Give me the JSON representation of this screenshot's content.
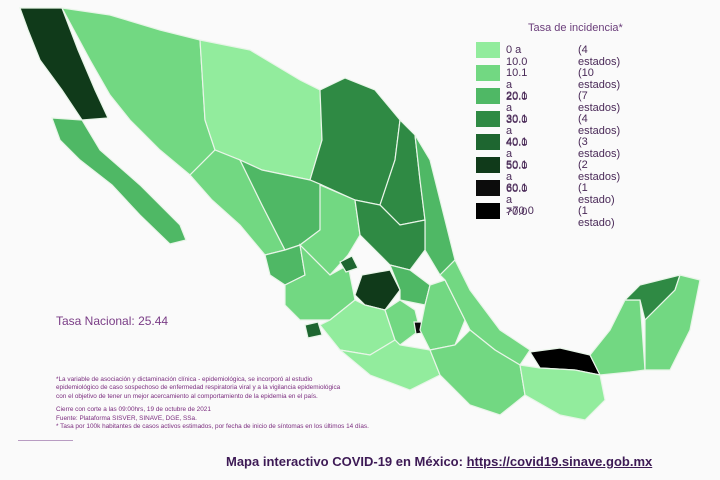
{
  "legend": {
    "title": "Tasa de incidencia*",
    "rows": [
      {
        "range": "0  a  10.0",
        "count": "(4 estados)",
        "color": "#92ec9d"
      },
      {
        "range": "10.1  a  20.0",
        "count": "(10 estados)",
        "color": "#72d882"
      },
      {
        "range": "20.1  a  30.0",
        "count": "(7 estados)",
        "color": "#4fb865"
      },
      {
        "range": "30.1  a  40.0",
        "count": "(4 estados)",
        "color": "#2f8a44"
      },
      {
        "range": "40.1  a  50.0",
        "count": "(3 estados)",
        "color": "#1e6630"
      },
      {
        "range": "50.1  a  60.0",
        "count": "(2 estados)",
        "color": "#103a1a"
      },
      {
        "range": "60.1  a  70.0",
        "count": "(1 estado)",
        "color": "#0c0c0c"
      },
      {
        "range": ">70.0",
        "count": "(1 estado)",
        "color": "#000000"
      }
    ]
  },
  "national": {
    "label": "Tasa Nacional:",
    "value": 25.44
  },
  "footnotes": [
    "*La variable de asociación y dictaminación clínica - epidemiológica, se incorporó al estudio",
    "epidemiológico de caso sospechoso de enfermedad respiratoria viral y a la vigilancia epidemiológica",
    "con el objetivo de tener un mejor acercamiento al comportamiento de la epidemia en el país.",
    "Cierre con corte a las 09:00hrs, 19 de octubre de 2021",
    "Fuente: Plataforma SISVER, SINAVE, DGE, SSa.",
    "* Tasa por 100k habitantes de casos activos estimados, por fecha de inicio de síntomas en los últimos 14 días."
  ],
  "footer": {
    "text": "Mapa interactivo COVID-19 en México:",
    "link": "https://covid19.sinave.gob.mx"
  }
}
